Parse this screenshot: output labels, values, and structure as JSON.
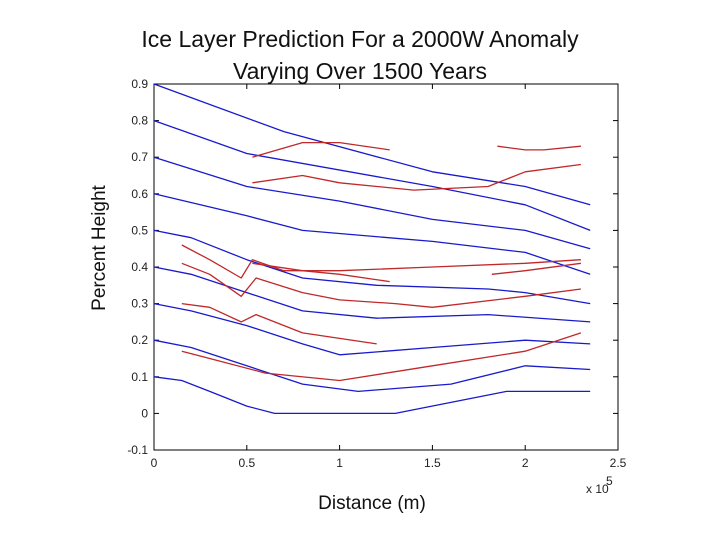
{
  "chart_data": {
    "type": "line",
    "title_lines": [
      "Ice Layer Prediction For a 2000W Anomaly",
      "Varying Over 1500 Years"
    ],
    "xlabel": "Distance (m)",
    "ylabel": "Percent Height",
    "x_multiplier": "x 10",
    "x_multiplier_exp": "5",
    "xlim": [
      0,
      2.5
    ],
    "ylim": [
      -0.1,
      0.9
    ],
    "xticks": [
      "0",
      "0.5",
      "1",
      "1.5",
      "2",
      "2.5"
    ],
    "yticks": [
      "-0.1",
      "0",
      "0.1",
      "0.2",
      "0.3",
      "0.4",
      "0.5",
      "0.6",
      "0.7",
      "0.8",
      "0.9"
    ],
    "grid": false,
    "colors": {
      "blue": "#1a1acd",
      "red": "#c0282a"
    },
    "series_blue": [
      {
        "x": [
          0,
          0.7,
          1.5,
          2.0,
          2.35
        ],
        "y": [
          0.9,
          0.77,
          0.66,
          0.62,
          0.57
        ]
      },
      {
        "x": [
          0,
          0.5,
          1.5,
          2.0,
          2.35
        ],
        "y": [
          0.8,
          0.71,
          0.62,
          0.57,
          0.5
        ]
      },
      {
        "x": [
          0,
          0.5,
          1.0,
          1.5,
          2.0,
          2.35
        ],
        "y": [
          0.7,
          0.62,
          0.58,
          0.53,
          0.5,
          0.45
        ]
      },
      {
        "x": [
          0,
          0.5,
          0.8,
          1.5,
          2.0,
          2.35
        ],
        "y": [
          0.6,
          0.54,
          0.5,
          0.47,
          0.44,
          0.38
        ]
      },
      {
        "x": [
          0,
          0.2,
          0.5,
          0.8,
          1.2,
          1.8,
          2.0,
          2.35
        ],
        "y": [
          0.5,
          0.48,
          0.42,
          0.37,
          0.35,
          0.34,
          0.33,
          0.3
        ]
      },
      {
        "x": [
          0,
          0.2,
          0.5,
          0.8,
          1.2,
          1.8,
          2.35
        ],
        "y": [
          0.4,
          0.38,
          0.33,
          0.28,
          0.26,
          0.27,
          0.25
        ]
      },
      {
        "x": [
          0,
          0.2,
          0.5,
          0.8,
          1.0,
          1.5,
          2.0,
          2.35
        ],
        "y": [
          0.3,
          0.28,
          0.24,
          0.19,
          0.16,
          0.18,
          0.2,
          0.19
        ]
      },
      {
        "x": [
          0,
          0.2,
          0.5,
          0.8,
          1.1,
          1.6,
          2.0,
          2.35
        ],
        "y": [
          0.2,
          0.18,
          0.13,
          0.08,
          0.06,
          0.08,
          0.13,
          0.12
        ]
      },
      {
        "x": [
          0,
          0.15,
          0.3,
          0.5,
          0.65,
          1.3,
          1.9,
          2.35
        ],
        "y": [
          0.1,
          0.09,
          0.06,
          0.02,
          0.0,
          0.0,
          0.06,
          0.06
        ]
      }
    ],
    "series_red": [
      {
        "x": [
          0.53,
          0.8,
          1.0,
          1.27
        ],
        "y": [
          0.7,
          0.74,
          0.74,
          0.72
        ]
      },
      {
        "x": [
          0.53,
          0.8,
          1.0,
          1.4,
          1.8,
          2.0,
          2.3
        ],
        "y": [
          0.63,
          0.65,
          0.63,
          0.61,
          0.62,
          0.66,
          0.68
        ]
      },
      {
        "x": [
          1.85,
          2.0,
          2.1,
          2.3
        ],
        "y": [
          0.73,
          0.72,
          0.72,
          0.73
        ]
      },
      {
        "x": [
          0.15,
          0.3,
          0.47,
          0.53,
          0.7,
          1.0,
          1.5,
          2.0,
          2.3
        ],
        "y": [
          0.46,
          0.42,
          0.37,
          0.42,
          0.39,
          0.39,
          0.4,
          0.41,
          0.42
        ]
      },
      {
        "x": [
          0.15,
          0.3,
          0.47,
          0.55,
          0.8,
          1.0,
          1.3,
          1.5,
          2.0,
          2.3
        ],
        "y": [
          0.41,
          0.38,
          0.32,
          0.37,
          0.33,
          0.31,
          0.3,
          0.29,
          0.32,
          0.34
        ]
      },
      {
        "x": [
          0.15,
          0.3,
          0.47,
          0.55,
          0.8,
          1.2
        ],
        "y": [
          0.3,
          0.29,
          0.25,
          0.27,
          0.22,
          0.19
        ]
      },
      {
        "x": [
          0.15,
          0.3,
          0.6,
          1.0,
          1.5,
          2.0,
          2.3
        ],
        "y": [
          0.17,
          0.15,
          0.11,
          0.09,
          0.13,
          0.17,
          0.22
        ]
      },
      {
        "x": [
          0.53,
          0.8,
          1.0,
          1.27
        ],
        "y": [
          0.41,
          0.39,
          0.38,
          0.36
        ]
      },
      {
        "x": [
          1.82,
          2.0,
          2.3
        ],
        "y": [
          0.38,
          0.39,
          0.41
        ]
      }
    ]
  }
}
